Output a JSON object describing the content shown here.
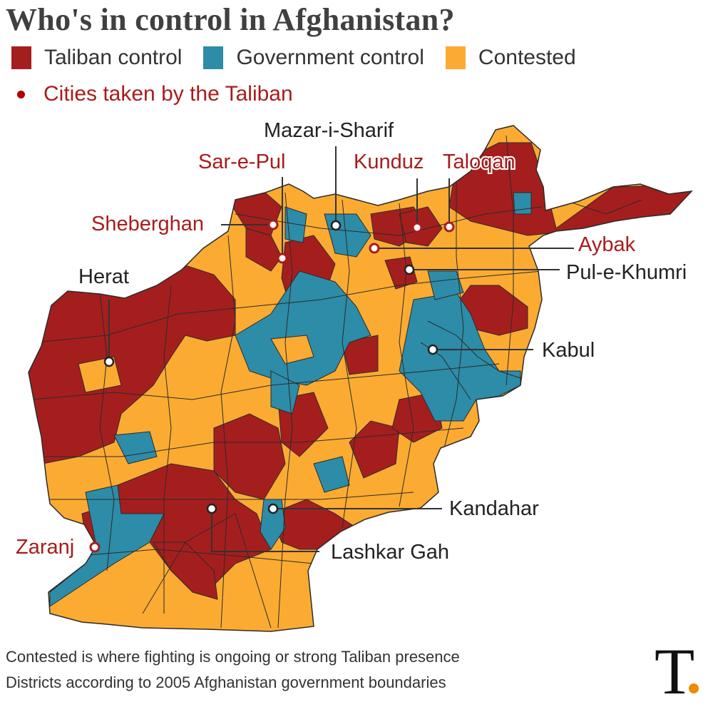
{
  "title": "Who's in control in Afghanistan?",
  "legend": {
    "items": [
      {
        "label": "Taliban control",
        "color": "#a51e1e"
      },
      {
        "label": "Government control",
        "color": "#2d8ca8"
      },
      {
        "label": "Contested",
        "color": "#fbab32"
      }
    ],
    "cities_taken": {
      "label": "Cities taken by the Taliban",
      "color": "#b00000"
    }
  },
  "cities": [
    {
      "name": "Mazar-i-Sharif",
      "taken": false
    },
    {
      "name": "Sar-e-Pul",
      "taken": true
    },
    {
      "name": "Kunduz",
      "taken": true
    },
    {
      "name": "Taloqan",
      "taken": true
    },
    {
      "name": "Sheberghan",
      "taken": true
    },
    {
      "name": "Aybak",
      "taken": true
    },
    {
      "name": "Pul-e-Khumri",
      "taken": false
    },
    {
      "name": "Herat",
      "taken": false
    },
    {
      "name": "Kabul",
      "taken": false
    },
    {
      "name": "Kandahar",
      "taken": false
    },
    {
      "name": "Lashkar Gah",
      "taken": false
    },
    {
      "name": "Zaranj",
      "taken": true
    }
  ],
  "footnotes": [
    "Contested is where fighting is ongoing or strong Taliban presence",
    "Districts according to 2005 Afghanistan government boundaries"
  ],
  "brand": {
    "letter": "T",
    "dot_color": "#f08a00"
  },
  "colors": {
    "label_taken": "#a81c1c",
    "label_normal": "#222222",
    "border": "#2b2b2b"
  }
}
